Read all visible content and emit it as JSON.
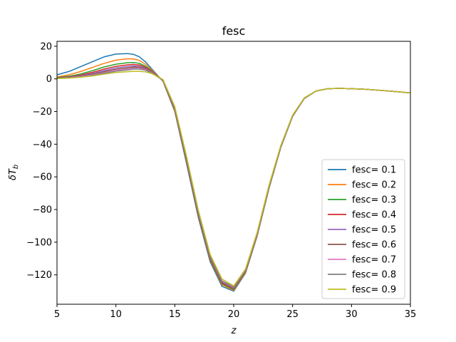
{
  "chart_data": {
    "type": "line",
    "title": "fesc",
    "xlabel": "z",
    "ylabel": "δT_b",
    "xlim": [
      5,
      35
    ],
    "ylim": [
      -138,
      23
    ],
    "xticks": [
      5,
      10,
      15,
      20,
      25,
      30,
      35
    ],
    "yticks": [
      20,
      0,
      -20,
      -40,
      -60,
      -80,
      -100,
      -120
    ],
    "grid": false,
    "legend_position": "lower right",
    "x": [
      5,
      6,
      7,
      8,
      9,
      10,
      11,
      11.5,
      12,
      12.5,
      13,
      13.5,
      14,
      15,
      16,
      17,
      18,
      19,
      20,
      21,
      22,
      23,
      24,
      25,
      26,
      27,
      28,
      29,
      30,
      31,
      32,
      33,
      34,
      35
    ],
    "series": [
      {
        "name": "fesc= 0.1",
        "color": "#1f77b4",
        "values": [
          2.5,
          4.5,
          7.5,
          10.5,
          13.5,
          15.2,
          15.5,
          15.0,
          13.5,
          10.5,
          6.5,
          2.5,
          -1.5,
          -20,
          -52,
          -85,
          -112,
          -127,
          -130,
          -119,
          -96,
          -67,
          -42,
          -23,
          -12,
          -7.5,
          -6.0,
          -5.8,
          -6.0,
          -6.3,
          -6.8,
          -7.3,
          -7.9,
          -8.6
        ]
      },
      {
        "name": "fesc= 0.2",
        "color": "#ff7f0e",
        "values": [
          1.2,
          2.5,
          4.5,
          7.0,
          9.5,
          11.5,
          12.3,
          12.2,
          11.3,
          9.0,
          5.8,
          2.2,
          -1.3,
          -19.5,
          -51,
          -84,
          -111,
          -126,
          -129.5,
          -118.5,
          -95.5,
          -66.5,
          -41.7,
          -22.8,
          -11.9,
          -7.4,
          -6.0,
          -5.8,
          -6.0,
          -6.3,
          -6.8,
          -7.3,
          -7.9,
          -8.6
        ]
      },
      {
        "name": "fesc= 0.3",
        "color": "#2ca02c",
        "values": [
          0.8,
          1.6,
          3.0,
          5.0,
          7.3,
          9.0,
          9.9,
          10.0,
          9.5,
          7.8,
          5.2,
          1.9,
          -1.2,
          -19,
          -50.5,
          -83.5,
          -110.5,
          -125.5,
          -129,
          -118,
          -95,
          -66,
          -41.4,
          -22.6,
          -11.8,
          -7.4,
          -6.0,
          -5.8,
          -6.0,
          -6.3,
          -6.8,
          -7.3,
          -7.9,
          -8.6
        ]
      },
      {
        "name": "fesc= 0.4",
        "color": "#d62728",
        "values": [
          0.6,
          1.2,
          2.3,
          4.0,
          6.0,
          7.7,
          8.6,
          8.8,
          8.5,
          7.1,
          4.8,
          1.8,
          -1.1,
          -18.7,
          -50,
          -83,
          -110,
          -125,
          -128.5,
          -117.7,
          -94.8,
          -65.8,
          -41.3,
          -22.5,
          -11.8,
          -7.4,
          -6.0,
          -5.8,
          -6.0,
          -6.3,
          -6.8,
          -7.3,
          -7.9,
          -8.6
        ]
      },
      {
        "name": "fesc= 0.5",
        "color": "#9467bd",
        "values": [
          0.5,
          1.0,
          1.9,
          3.3,
          5.1,
          6.7,
          7.6,
          7.9,
          7.7,
          6.6,
          4.5,
          1.7,
          -1.0,
          -18.4,
          -49.5,
          -82.5,
          -109.5,
          -124.5,
          -128.2,
          -117.5,
          -94.6,
          -65.6,
          -41.2,
          -22.5,
          -11.7,
          -7.4,
          -6.0,
          -5.8,
          -6.0,
          -6.3,
          -6.8,
          -7.3,
          -7.9,
          -8.6
        ]
      },
      {
        "name": "fesc= 0.6",
        "color": "#8c564b",
        "values": [
          0.4,
          0.8,
          1.6,
          2.8,
          4.4,
          5.9,
          6.8,
          7.2,
          7.1,
          6.1,
          4.2,
          1.6,
          -0.9,
          -18.1,
          -49.2,
          -82.2,
          -109.2,
          -124.2,
          -127.9,
          -117.3,
          -94.4,
          -65.5,
          -41.1,
          -22.4,
          -11.7,
          -7.4,
          -6.0,
          -5.8,
          -6.0,
          -6.3,
          -6.8,
          -7.3,
          -7.9,
          -8.6
        ]
      },
      {
        "name": "fesc= 0.7",
        "color": "#e377c2",
        "values": [
          0.3,
          0.7,
          1.4,
          2.4,
          3.8,
          5.2,
          6.1,
          6.5,
          6.5,
          5.7,
          4.0,
          1.5,
          -0.8,
          -17.9,
          -48.9,
          -81.9,
          -108.9,
          -123.9,
          -127.6,
          -117.1,
          -94.2,
          -65.4,
          -41.0,
          -22.4,
          -11.7,
          -7.4,
          -6.0,
          -5.8,
          -6.0,
          -6.3,
          -6.8,
          -7.3,
          -7.9,
          -8.6
        ]
      },
      {
        "name": "fesc= 0.8",
        "color": "#7f7f7f",
        "values": [
          0.3,
          0.6,
          1.2,
          2.1,
          3.4,
          4.7,
          5.5,
          6.0,
          6.0,
          5.3,
          3.8,
          1.4,
          -0.7,
          -17.7,
          -48.6,
          -81.6,
          -108.6,
          -123.6,
          -127.4,
          -116.9,
          -94.1,
          -65.3,
          -41.0,
          -22.3,
          -11.6,
          -7.4,
          -6.0,
          -5.8,
          -6.0,
          -6.3,
          -6.8,
          -7.3,
          -7.9,
          -8.6
        ]
      },
      {
        "name": "fesc= 0.9",
        "color": "#bcbd22",
        "values": [
          0.2,
          0.5,
          1.0,
          1.8,
          2.9,
          3.9,
          4.4,
          4.6,
          4.6,
          4.3,
          3.4,
          1.6,
          -0.4,
          -17,
          -47.5,
          -80.5,
          -107.5,
          -122.5,
          -126.8,
          -116.5,
          -93.8,
          -65.1,
          -40.8,
          -22.2,
          -11.6,
          -7.4,
          -6.0,
          -5.8,
          -6.0,
          -6.3,
          -6.8,
          -7.3,
          -7.9,
          -8.6
        ]
      }
    ]
  }
}
